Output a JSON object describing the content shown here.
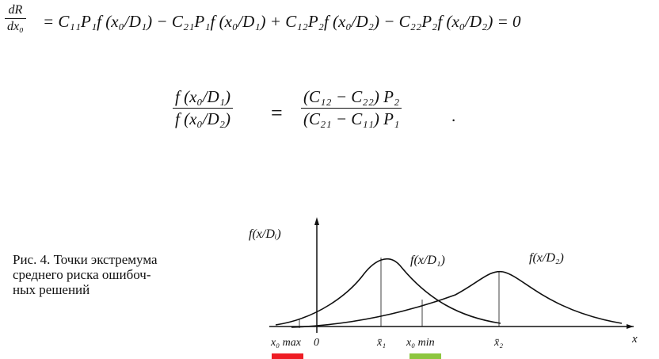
{
  "equation_1": {
    "lhs_numerator": "dR",
    "lhs_denominator": "dx₀",
    "rhs": "= C₁₁P₁f (x₀/D₁) − C₂₁P₁f (x₀/D₁) + C₁₂P₂f (x₀/D₂) − C₂₂P₂f (x₀/D₂) = 0"
  },
  "equation_2": {
    "left_numerator": "f (x₀/D₁)",
    "left_denominator": "f (x₀/D₂)",
    "equals": "=",
    "right_numerator": "(C₁₂ − C₂₂) P₂",
    "right_denominator": "(C₂₁ − C₁₁) P₁",
    "end": "."
  },
  "figure": {
    "caption": [
      "Рис. 4. Точки экстремума",
      "среднего риска ошибоч-",
      "ных решений"
    ],
    "y_label": "f(x/Dᵢ)",
    "x_label": "x",
    "curve_labels": [
      "f(x/D₁)",
      "f(x/D₂)"
    ],
    "tick_labels": [
      "x₀ max",
      "0",
      "x̄₁",
      "x₀ min",
      "x̄₂"
    ]
  }
}
